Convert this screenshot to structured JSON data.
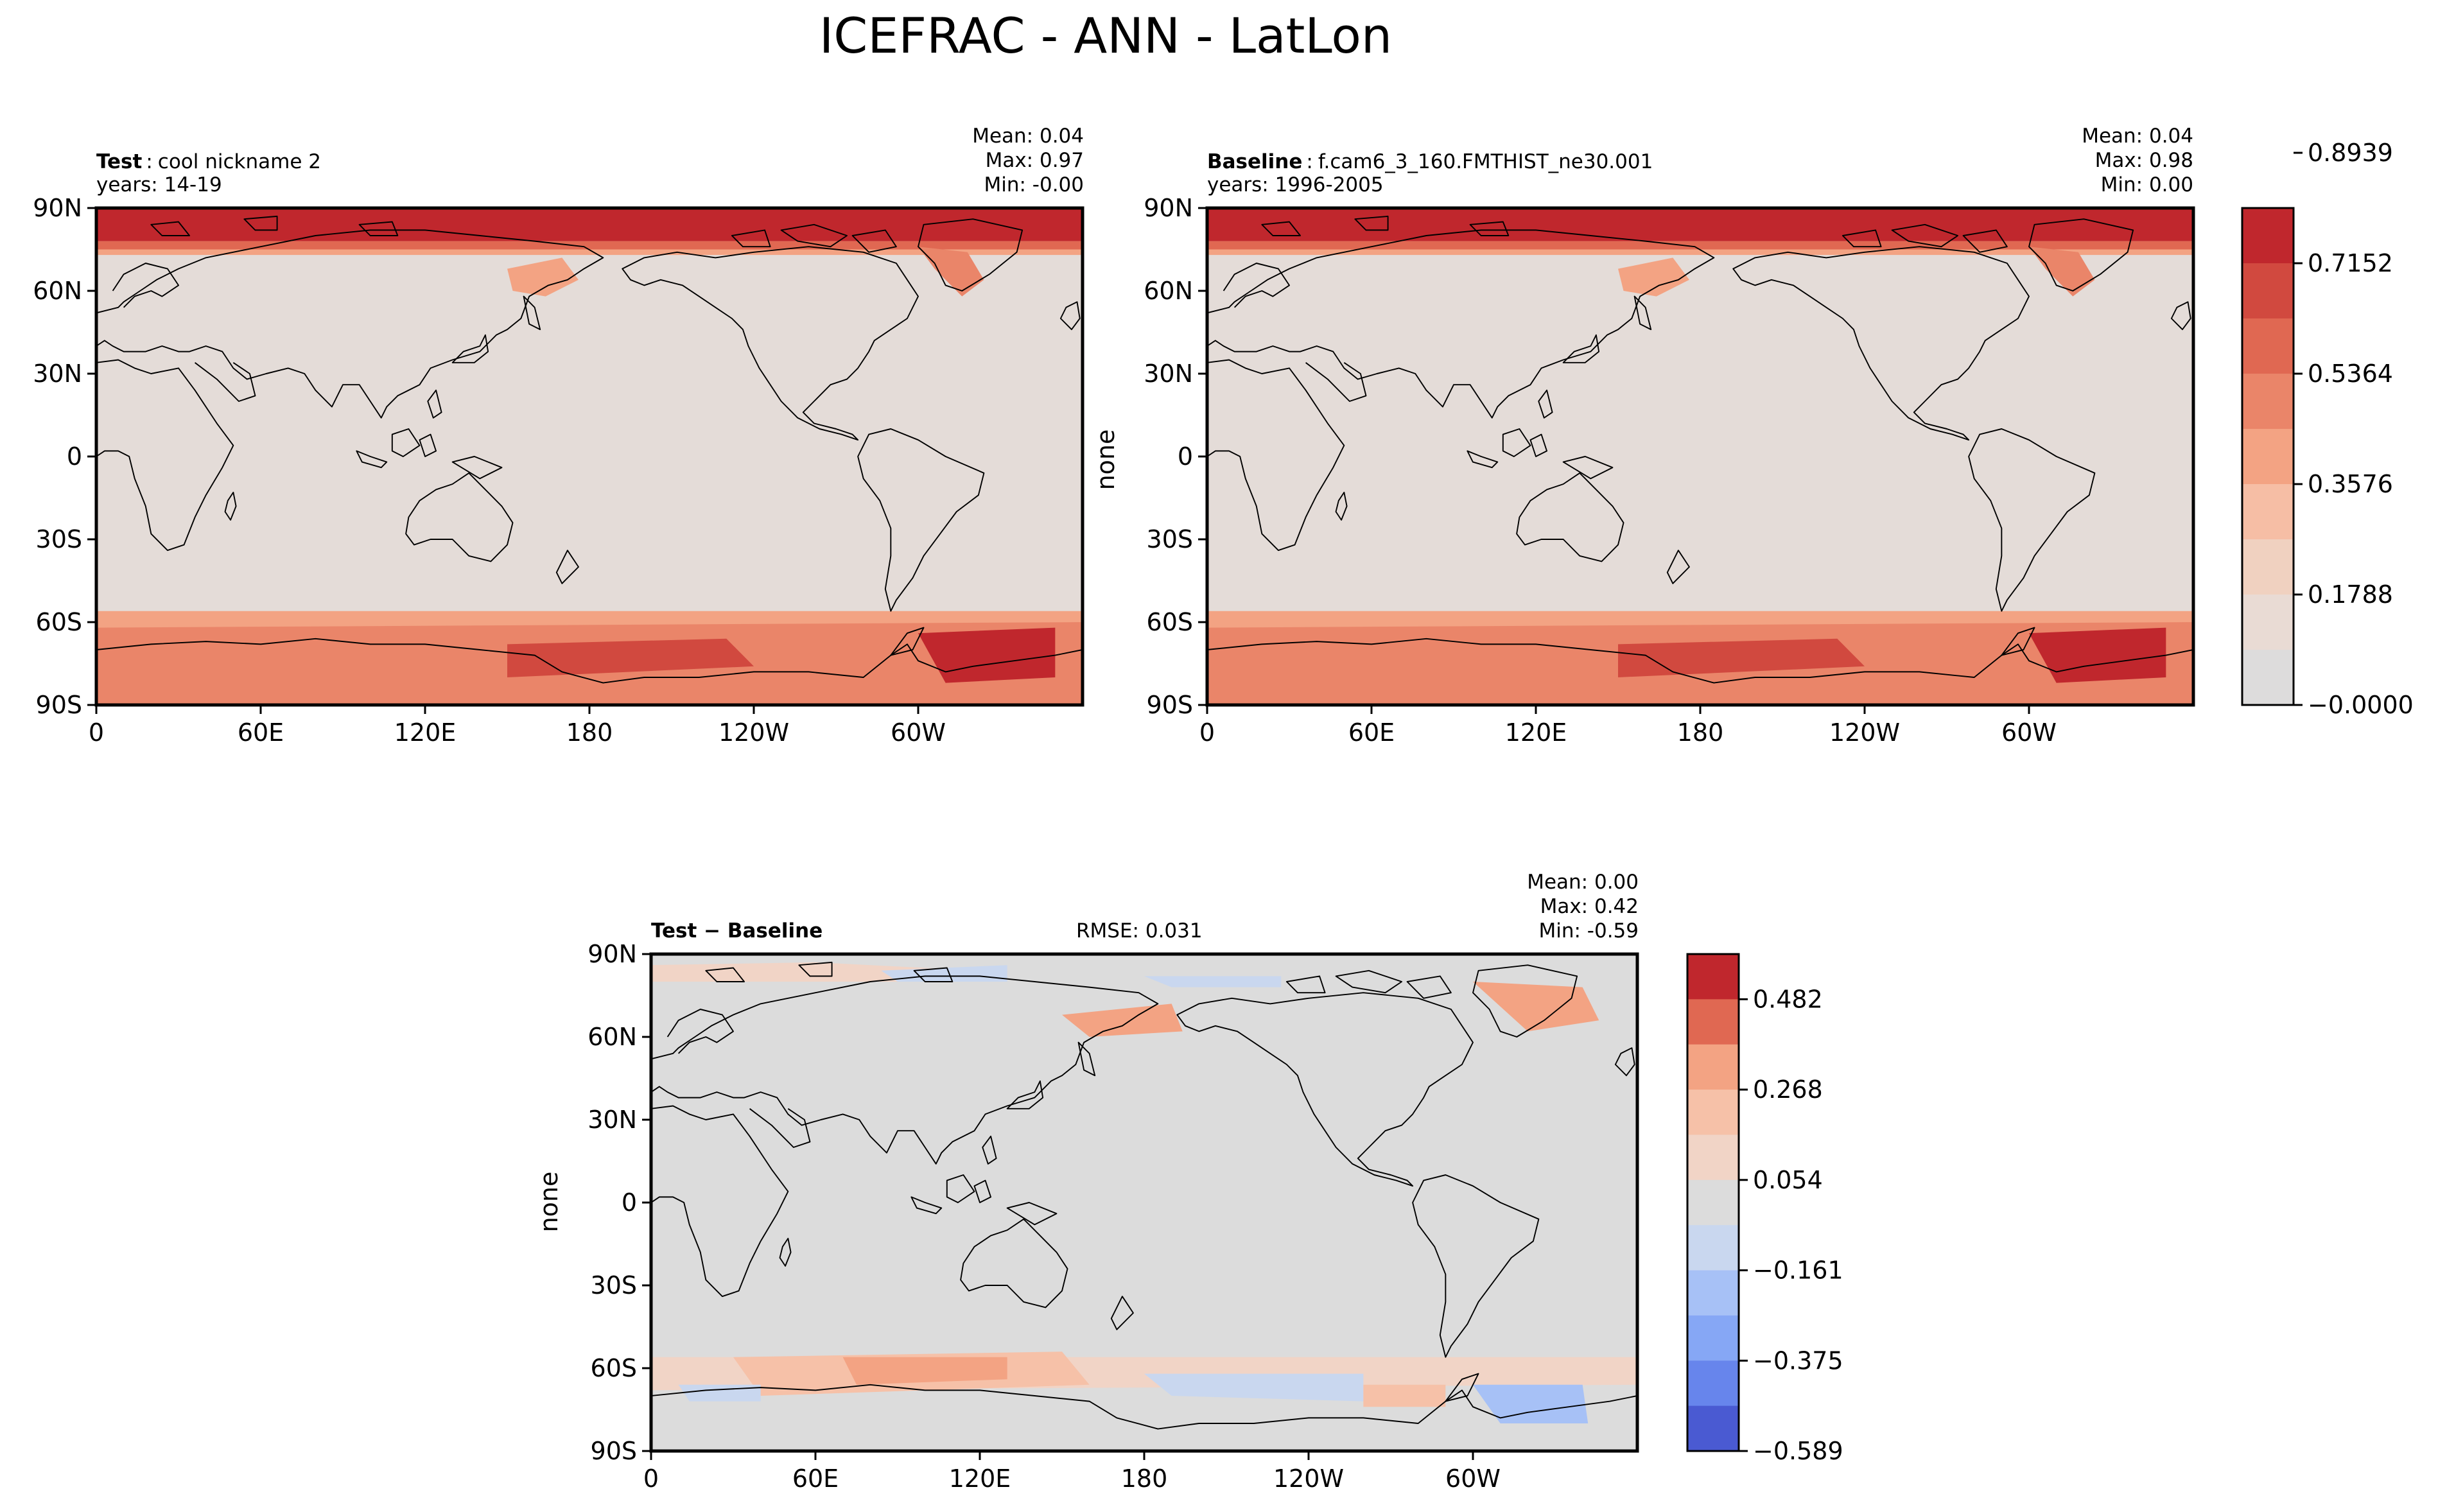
{
  "figure": {
    "title": "ICEFRAC - ANN - LatLon"
  },
  "panels": [
    {
      "id": "test",
      "label_bold": "Test",
      "label_sep": ":",
      "label_text": "cool nickname 2",
      "subtitle": "years: 14-19",
      "stats": [
        "Mean:  0.04",
        "Max:  0.97",
        "Min: -0.00"
      ],
      "ylabel": "",
      "rmse": ""
    },
    {
      "id": "baseline",
      "label_bold": "Baseline",
      "label_sep": ":",
      "label_text": "f.cam6_3_160.FMTHIST_ne30.001",
      "subtitle": "years: 1996-2005",
      "stats": [
        "Mean:  0.04",
        "Max:  0.98",
        "Min:  0.00"
      ],
      "ylabel": "none",
      "rmse": ""
    },
    {
      "id": "diff",
      "label_bold": "Test − Baseline",
      "label_sep": "",
      "label_text": "",
      "subtitle": "",
      "stats": [
        "Mean:  0.00",
        "Max:  0.42",
        "Min: -0.59"
      ],
      "ylabel": "none",
      "rmse": "RMSE: 0.031"
    }
  ],
  "axes": {
    "lat_ticks": [
      "90N",
      "60N",
      "30N",
      "0",
      "30S",
      "60S",
      "90S"
    ],
    "lon_ticks": [
      "0",
      "60E",
      "120E",
      "180",
      "120W",
      "60W"
    ]
  },
  "colorbars": {
    "main": {
      "labels": [
        "0.8939",
        "0.7152",
        "0.5364",
        "0.3576",
        "0.1788",
        "−0.0000"
      ],
      "colors": [
        "#c0272d",
        "#d1493f",
        "#e06852",
        "#ea8569",
        "#f3a383",
        "#f6bea5",
        "#f0d1c0",
        "#e9dbd4",
        "#dddcdc"
      ]
    },
    "diff": {
      "labels": [
        "0.482",
        "0.268",
        "0.054",
        "−0.161",
        "−0.375",
        "−0.589"
      ],
      "colors": [
        "#c0272d",
        "#e06852",
        "#f3a383",
        "#f6c1a8",
        "#f1d4c6",
        "#dcdcdc",
        "#c9d7ef",
        "#a7c1f6",
        "#86a7f5",
        "#6785ec",
        "#4a5ad2"
      ]
    }
  },
  "colors": {
    "land": "#dcdcdc",
    "ocean_main": "#e4dcd8",
    "ice_high": "#c0272d",
    "ice_mid": "#e06852",
    "ice_low": "#f3a383",
    "blue": "#86a7f5"
  }
}
